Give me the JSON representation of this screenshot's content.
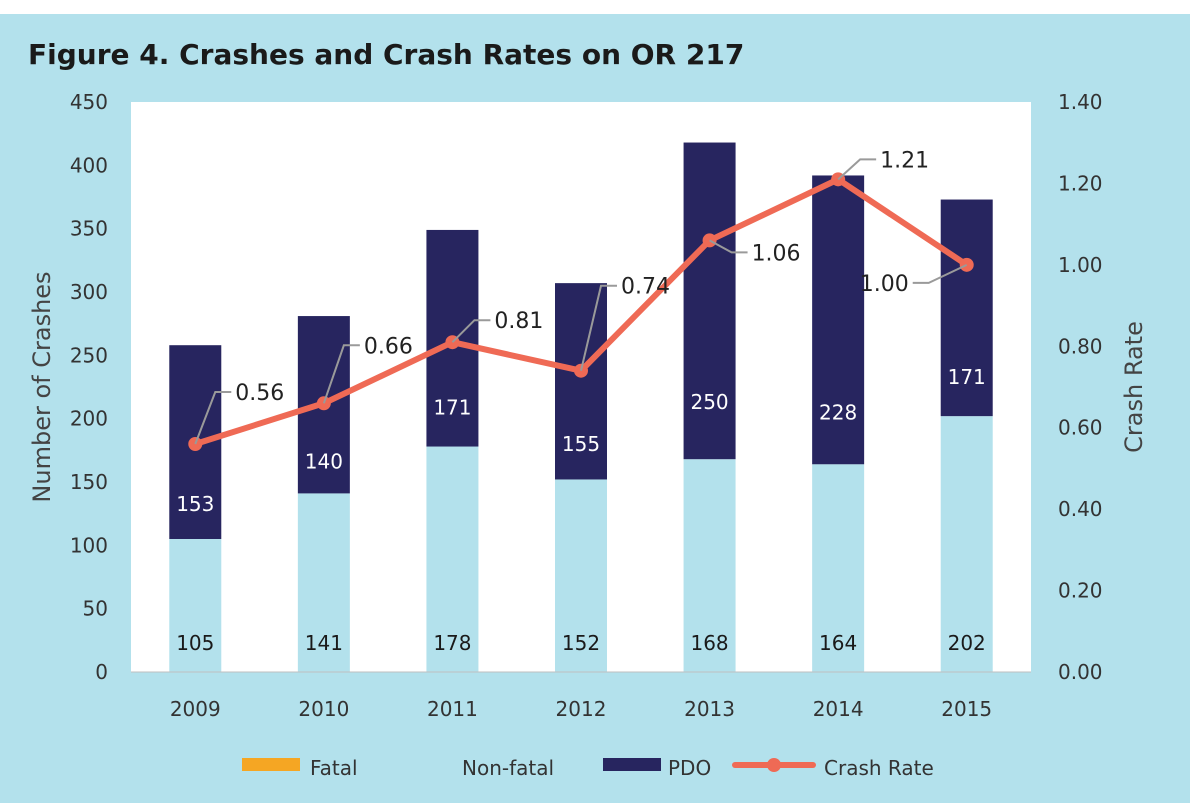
{
  "title": "Figure 4. Crashes and Crash Rates on OR 217",
  "colors": {
    "fatal": "#f5a623",
    "nonfatal": "#b3e1ec",
    "pdo": "#27255f",
    "rate": "#ef6a55",
    "background": "#b3e1ec",
    "plot": "#ffffff"
  },
  "chart_data": {
    "type": "bar",
    "subtype": "stacked bar with line on secondary axis",
    "categories": [
      "2009",
      "2010",
      "2011",
      "2012",
      "2013",
      "2014",
      "2015"
    ],
    "series": [
      {
        "name": "Fatal",
        "type": "bar",
        "axis": "left",
        "values": [
          0,
          0,
          0,
          0,
          0,
          0,
          0
        ]
      },
      {
        "name": "Non-fatal",
        "type": "bar",
        "axis": "left",
        "values": [
          105,
          141,
          178,
          152,
          168,
          164,
          202
        ]
      },
      {
        "name": "PDO",
        "type": "bar",
        "axis": "left",
        "values": [
          153,
          140,
          171,
          155,
          250,
          228,
          171
        ]
      },
      {
        "name": "Crash Rate",
        "type": "line",
        "axis": "right",
        "values": [
          0.56,
          0.66,
          0.81,
          0.74,
          1.06,
          1.21,
          1.0
        ]
      }
    ],
    "nonfatal_labels": [
      "105",
      "141",
      "178",
      "152",
      "168",
      "164",
      "202"
    ],
    "pdo_labels": [
      "153",
      "140",
      "171",
      "155",
      "250",
      "228",
      "171"
    ],
    "rate_labels": [
      "0.56",
      "0.66",
      "0.81",
      "0.74",
      "1.06",
      "1.21",
      "1.00"
    ],
    "ylabel": "Number of Crashes",
    "y2label": "Crash Rate",
    "ylim": [
      0,
      450
    ],
    "y2lim": [
      0,
      1.4
    ],
    "yticks": [
      "0",
      "50",
      "100",
      "150",
      "200",
      "250",
      "300",
      "350",
      "400",
      "450"
    ],
    "y2ticks": [
      "0.00",
      "0.20",
      "0.40",
      "0.60",
      "0.80",
      "1.00",
      "1.20",
      "1.40"
    ],
    "grid": false,
    "legend": {
      "placement": "bottom",
      "entries": [
        "Fatal",
        "Non-fatal",
        "PDO",
        "Crash Rate"
      ]
    }
  }
}
